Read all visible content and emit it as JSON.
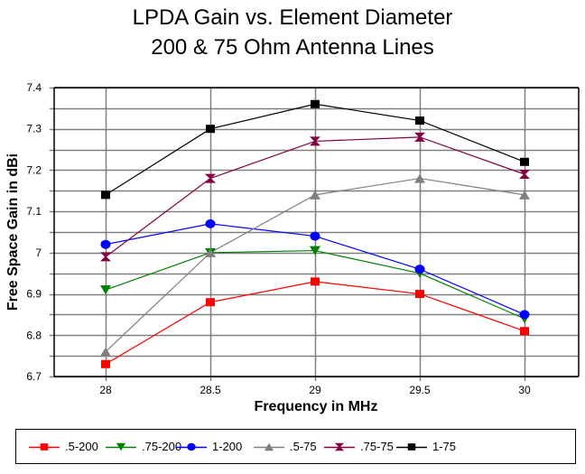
{
  "chart_data": {
    "type": "line",
    "title": "LPDA Gain vs. Element Diameter",
    "subtitle": "200 & 75 Ohm Antenna Lines",
    "xlabel": "Frequency in MHz",
    "ylabel": "Free Space Gain in dBi",
    "x": [
      28,
      28.5,
      29,
      29.5,
      30
    ],
    "x_tick_labels": [
      "28",
      "28.5",
      "29",
      "29.5",
      "30"
    ],
    "ylim": [
      6.7,
      7.4
    ],
    "y_tick_labels": [
      "7.4",
      "7.3",
      "7.2",
      "7.1",
      "7",
      "6.9",
      "6.8",
      "6.7"
    ],
    "y_ticks": [
      7.4,
      7.3,
      7.2,
      7.1,
      7.0,
      6.9,
      6.8,
      6.7
    ],
    "y_minor_step": 0.05,
    "grid": true,
    "legend_position": "bottom",
    "series": [
      {
        "name": ".5-200",
        "color": "#ff0000",
        "marker": "square",
        "values": [
          6.73,
          6.88,
          6.93,
          6.9,
          6.81
        ]
      },
      {
        "name": ".75-200",
        "color": "#008000",
        "marker": "triangle-down",
        "values": [
          6.91,
          7.0,
          7.005,
          6.95,
          6.84
        ]
      },
      {
        "name": "1-200",
        "color": "#0000ff",
        "marker": "circle",
        "values": [
          7.02,
          7.07,
          7.04,
          6.96,
          6.85
        ]
      },
      {
        "name": ".5-75",
        "color": "#808080",
        "marker": "triangle-up",
        "values": [
          6.76,
          7.0,
          7.14,
          7.18,
          7.14
        ]
      },
      {
        "name": ".75-75",
        "color": "#800040",
        "marker": "hourglass",
        "values": [
          6.99,
          7.18,
          7.27,
          7.28,
          7.19
        ]
      },
      {
        "name": "1-75",
        "color": "#000000",
        "marker": "square",
        "values": [
          7.14,
          7.3,
          7.36,
          7.32,
          7.22
        ]
      }
    ]
  }
}
